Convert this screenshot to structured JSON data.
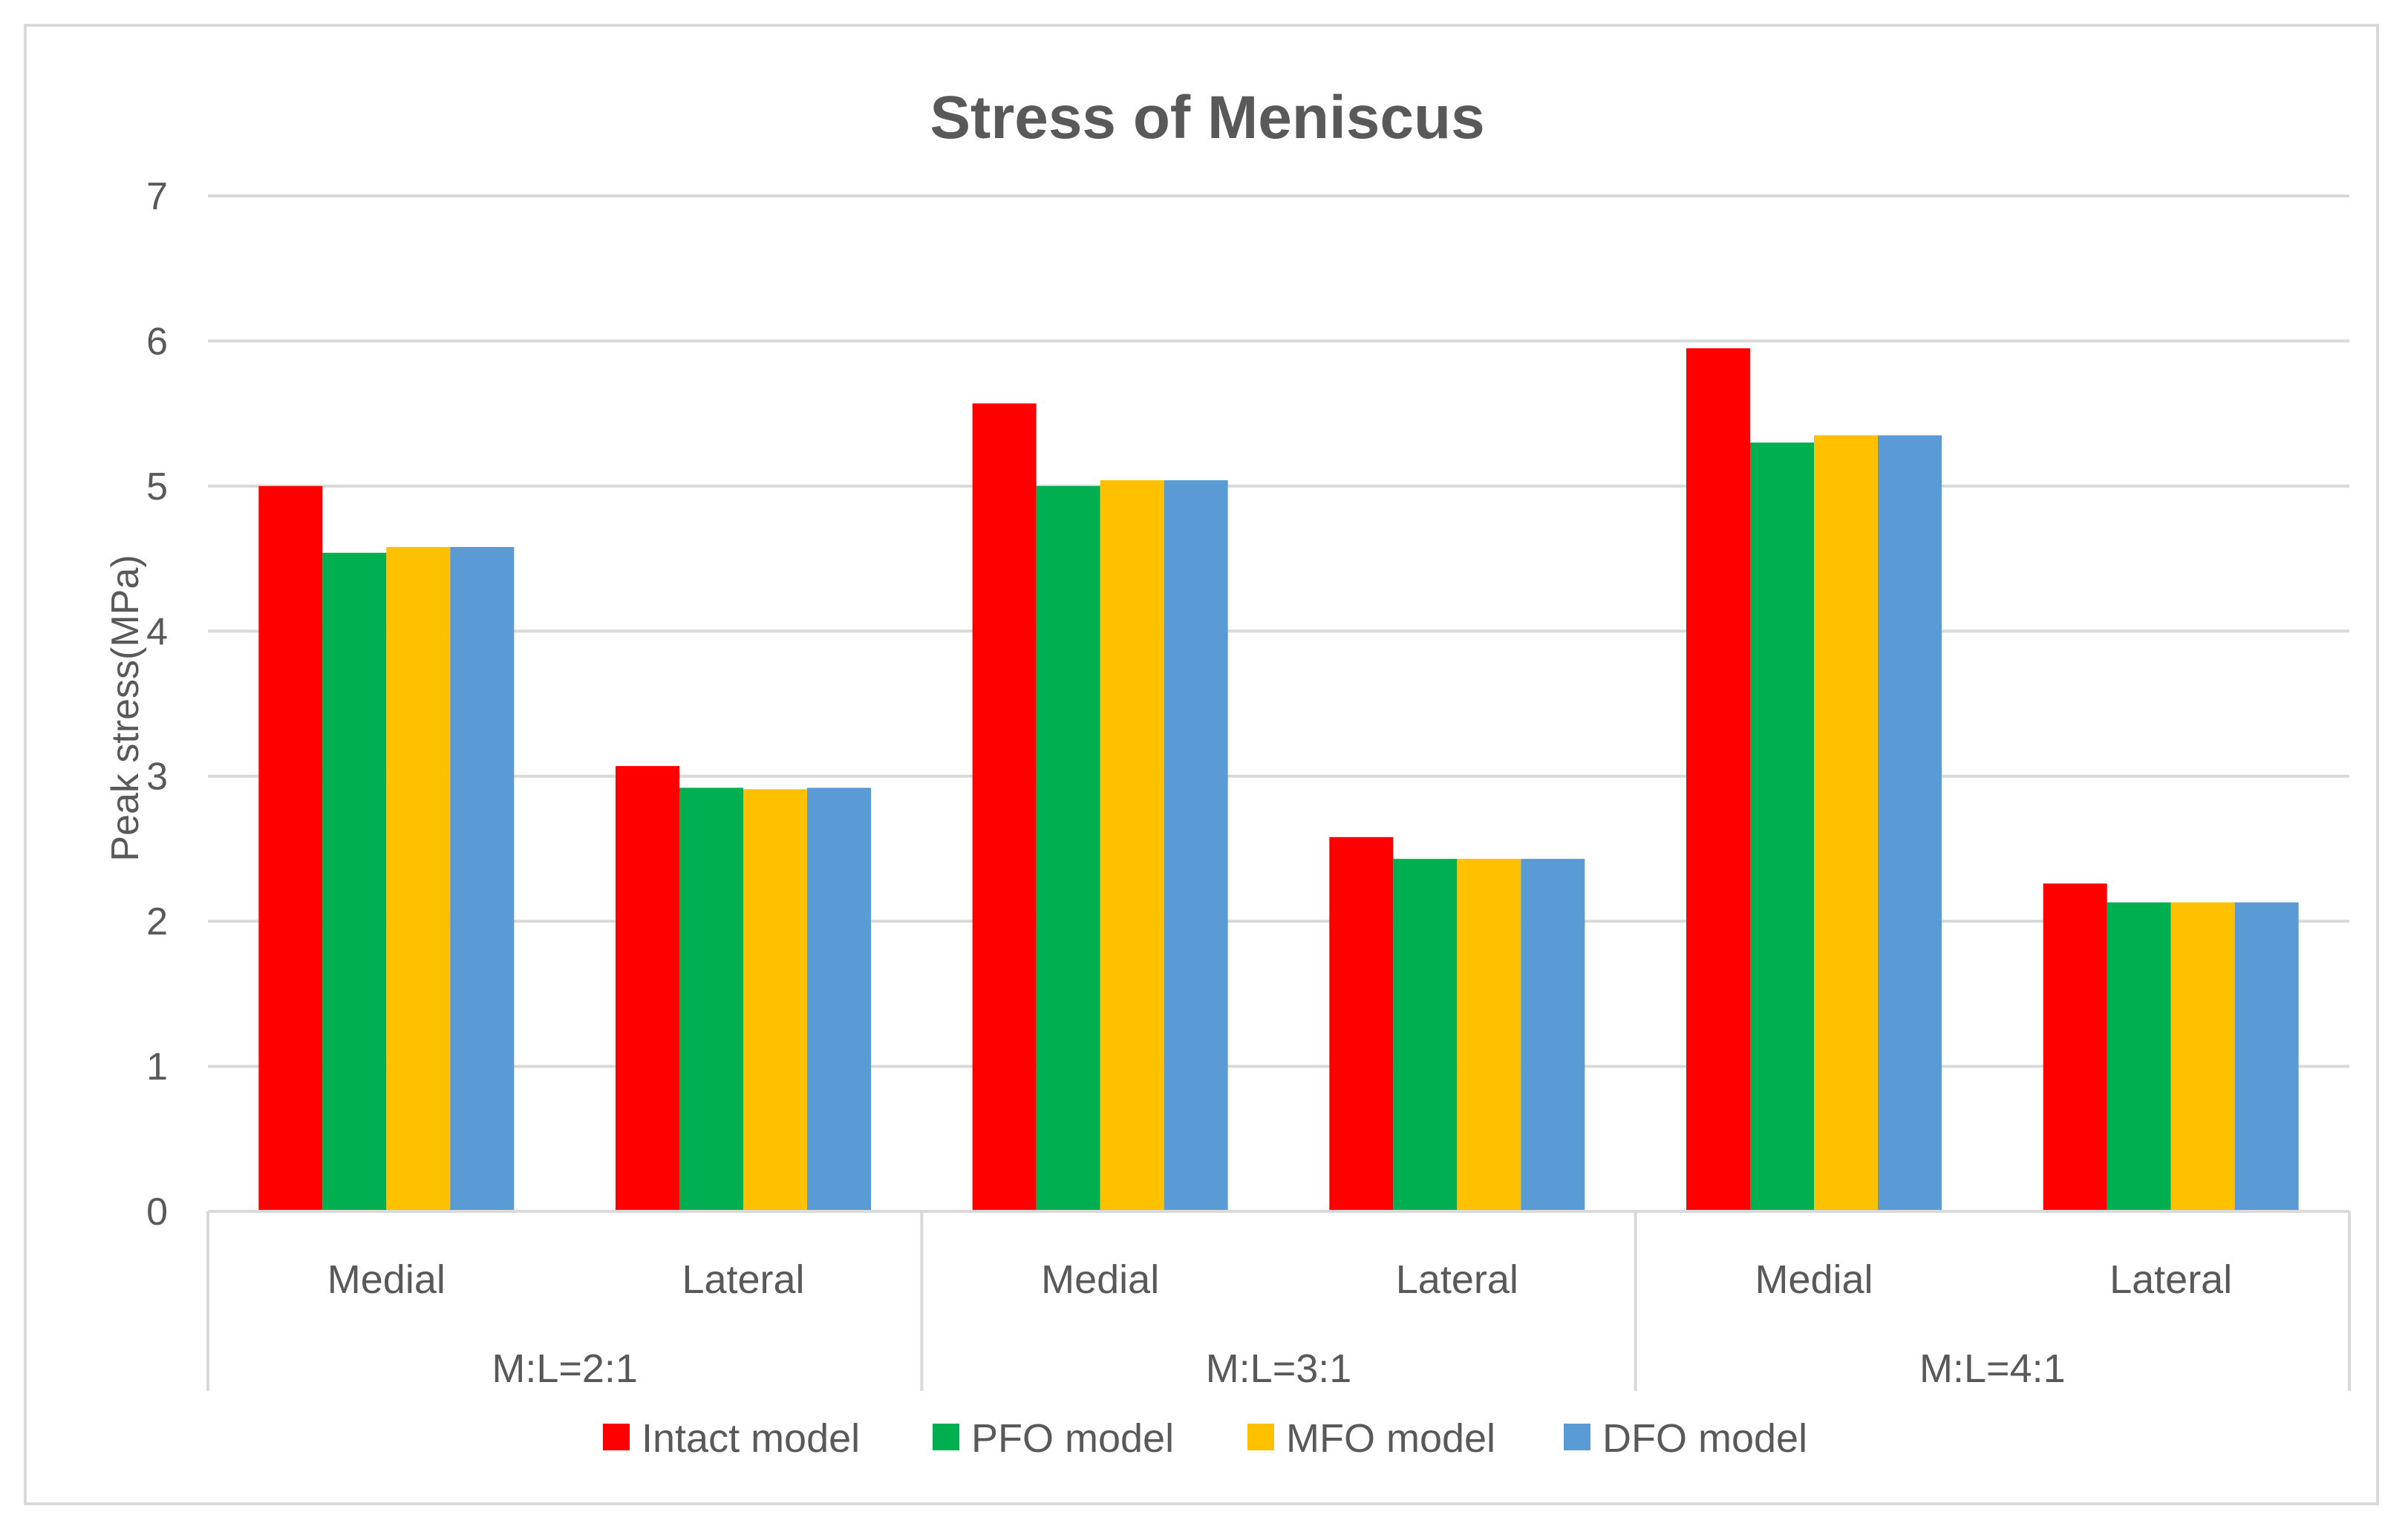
{
  "chart_data": {
    "type": "bar",
    "title": "Stress of  Meniscus",
    "xlabel": "",
    "ylabel": "Peak stress(MPa)",
    "ylim": [
      0,
      7
    ],
    "yticks": [
      "0",
      "1",
      "2",
      "3",
      "4",
      "5",
      "6",
      "7"
    ],
    "grid": true,
    "legend_position": "bottom",
    "groups": [
      {
        "label": "M:L=2:1",
        "categories": [
          "Medial",
          "Lateral"
        ]
      },
      {
        "label": "M:L=3:1",
        "categories": [
          "Medial",
          "Lateral"
        ]
      },
      {
        "label": "M:L=4:1",
        "categories": [
          "Medial",
          "Lateral"
        ]
      }
    ],
    "categories": [
      "Medial",
      "Lateral",
      "Medial",
      "Lateral",
      "Medial",
      "Lateral"
    ],
    "series": [
      {
        "name": "Intact model",
        "color": "#ff0000",
        "values": [
          5.0,
          3.07,
          5.57,
          2.58,
          5.95,
          2.26
        ]
      },
      {
        "name": "PFO model",
        "color": "#00b050",
        "values": [
          4.54,
          2.92,
          5.0,
          2.43,
          5.3,
          2.13
        ]
      },
      {
        "name": "MFO model",
        "color": "#ffc000",
        "values": [
          4.58,
          2.91,
          5.04,
          2.43,
          5.35,
          2.13
        ]
      },
      {
        "name": "DFO model",
        "color": "#5b9bd5",
        "values": [
          4.58,
          2.92,
          5.04,
          2.43,
          5.35,
          2.13
        ]
      }
    ]
  }
}
